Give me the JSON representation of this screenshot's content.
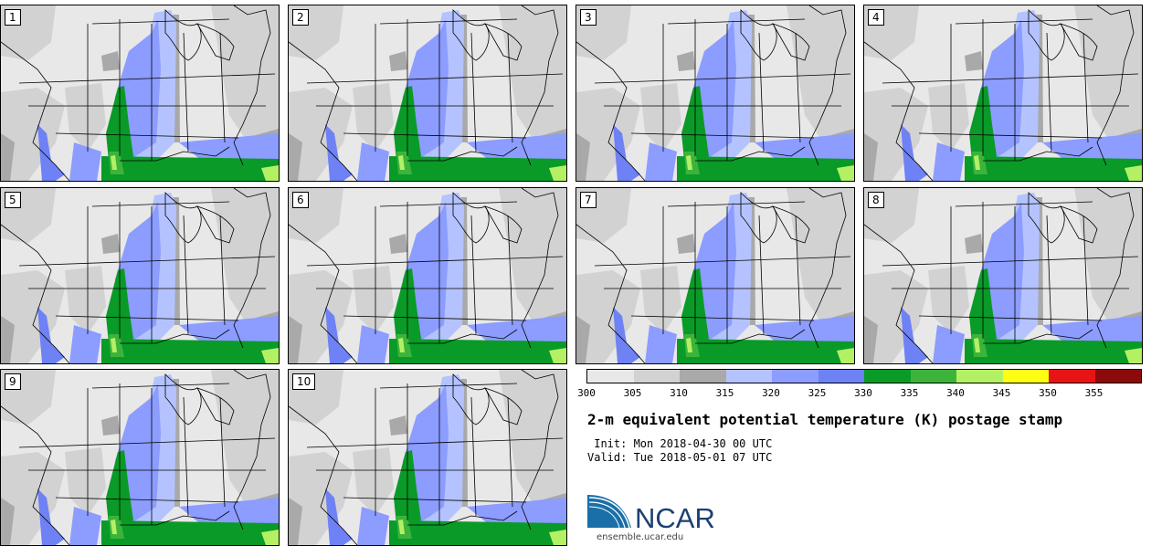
{
  "panels": [
    {
      "number": "1"
    },
    {
      "number": "2"
    },
    {
      "number": "3"
    },
    {
      "number": "4"
    },
    {
      "number": "5"
    },
    {
      "number": "6"
    },
    {
      "number": "7"
    },
    {
      "number": "8"
    },
    {
      "number": "9"
    },
    {
      "number": "10"
    }
  ],
  "legend": {
    "ticks": [
      "300",
      "305",
      "310",
      "315",
      "320",
      "325",
      "330",
      "335",
      "340",
      "345",
      "350",
      "355"
    ],
    "colors": [
      "#e8e8e8",
      "#d2d2d2",
      "#a9a9a9",
      "#b4c3ff",
      "#8c9cff",
      "#6e82f5",
      "#0a9a28",
      "#3cb43c",
      "#b4f064",
      "#ffff14",
      "#e61414",
      "#8c0a0a"
    ]
  },
  "title": "2-m equivalent potential temperature (K) postage stamp",
  "init": " Init: Mon 2018-04-30 00 UTC",
  "valid": "Valid: Tue 2018-05-01 07 UTC",
  "logo_text": "NCAR",
  "url": "ensemble.ucar.edu"
}
